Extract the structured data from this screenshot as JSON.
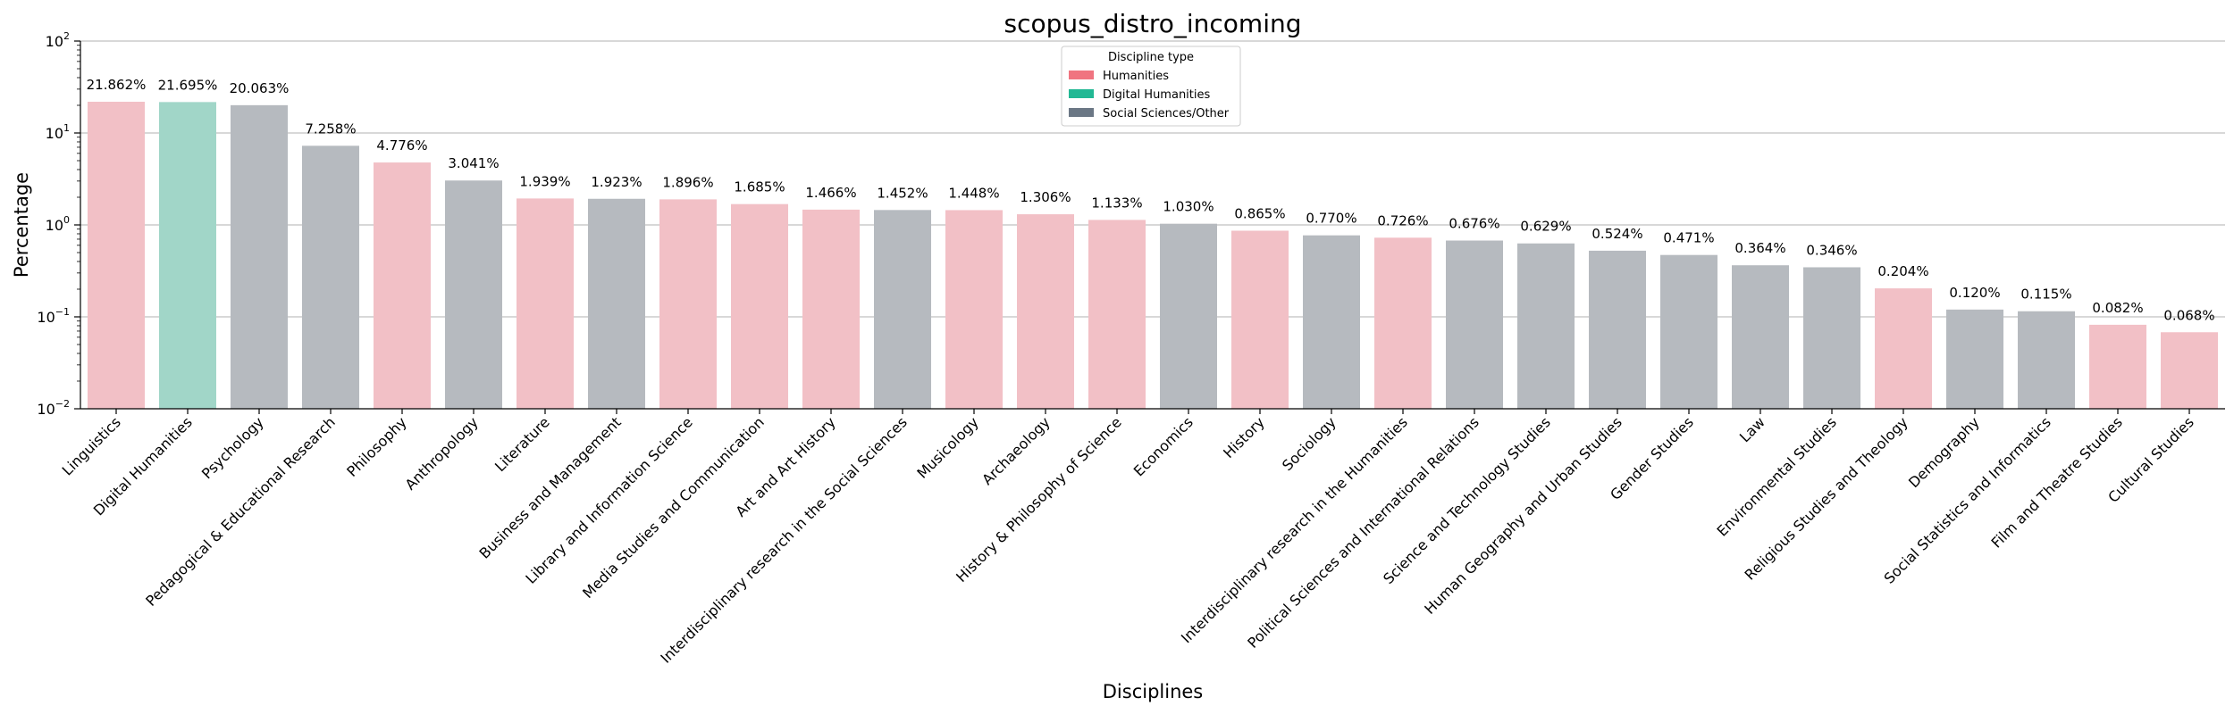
{
  "chart_data": {
    "type": "bar",
    "title": "scopus_distro_incoming",
    "xlabel": "Disciplines",
    "ylabel": "Percentage",
    "yscale": "log",
    "ylim": [
      0.01,
      100
    ],
    "yticks": [
      {
        "value": 100,
        "base": "10",
        "exp": "2"
      },
      {
        "value": 10,
        "base": "10",
        "exp": "1"
      },
      {
        "value": 1,
        "base": "10",
        "exp": "0"
      },
      {
        "value": 0.1,
        "base": "10",
        "exp": "−1"
      },
      {
        "value": 0.01,
        "base": "10",
        "exp": "−2"
      }
    ],
    "grid": "horizontal major",
    "legend": {
      "title": "Discipline type",
      "placement": "top-center",
      "entries": [
        {
          "key": "humanities",
          "label": "Humanities",
          "color": "#f07480"
        },
        {
          "key": "digital",
          "label": "Digital Humanities",
          "color": "#22b894"
        },
        {
          "key": "social",
          "label": "Social Sciences/Other",
          "color": "#6b7785"
        }
      ]
    },
    "bar_colors": {
      "humanities": "#f2c0c6",
      "digital": "#a1d6c8",
      "social": "#b6babf"
    },
    "bars": [
      {
        "category": "Linguistics",
        "value": 21.862,
        "label": "21.862%",
        "type": "humanities"
      },
      {
        "category": "Digital Humanities",
        "value": 21.695,
        "label": "21.695%",
        "type": "digital"
      },
      {
        "category": "Psychology",
        "value": 20.063,
        "label": "20.063%",
        "type": "social"
      },
      {
        "category": "Pedagogical & Educational Research",
        "value": 7.258,
        "label": "7.258%",
        "type": "social"
      },
      {
        "category": "Philosophy",
        "value": 4.776,
        "label": "4.776%",
        "type": "humanities"
      },
      {
        "category": "Anthropology",
        "value": 3.041,
        "label": "3.041%",
        "type": "social"
      },
      {
        "category": "Literature",
        "value": 1.939,
        "label": "1.939%",
        "type": "humanities"
      },
      {
        "category": "Business and Management",
        "value": 1.923,
        "label": "1.923%",
        "type": "social"
      },
      {
        "category": "Library and Information Science",
        "value": 1.896,
        "label": "1.896%",
        "type": "humanities"
      },
      {
        "category": "Media Studies and Communication",
        "value": 1.685,
        "label": "1.685%",
        "type": "humanities"
      },
      {
        "category": "Art and Art History",
        "value": 1.466,
        "label": "1.466%",
        "type": "humanities"
      },
      {
        "category": "Interdisciplinary research in the Social Sciences",
        "value": 1.452,
        "label": "1.452%",
        "type": "social"
      },
      {
        "category": "Musicology",
        "value": 1.448,
        "label": "1.448%",
        "type": "humanities"
      },
      {
        "category": "Archaeology",
        "value": 1.306,
        "label": "1.306%",
        "type": "humanities"
      },
      {
        "category": "History & Philosophy of Science",
        "value": 1.133,
        "label": "1.133%",
        "type": "humanities"
      },
      {
        "category": "Economics",
        "value": 1.03,
        "label": "1.030%",
        "type": "social"
      },
      {
        "category": "History",
        "value": 0.865,
        "label": "0.865%",
        "type": "humanities"
      },
      {
        "category": "Sociology",
        "value": 0.77,
        "label": "0.770%",
        "type": "social"
      },
      {
        "category": "Interdisciplinary research in the Humanities",
        "value": 0.726,
        "label": "0.726%",
        "type": "humanities"
      },
      {
        "category": "Political Sciences and International Relations",
        "value": 0.676,
        "label": "0.676%",
        "type": "social"
      },
      {
        "category": "Science and Technology Studies",
        "value": 0.629,
        "label": "0.629%",
        "type": "social"
      },
      {
        "category": "Human Geography and Urban Studies",
        "value": 0.524,
        "label": "0.524%",
        "type": "social"
      },
      {
        "category": "Gender Studies",
        "value": 0.471,
        "label": "0.471%",
        "type": "social"
      },
      {
        "category": "Law",
        "value": 0.364,
        "label": "0.364%",
        "type": "social"
      },
      {
        "category": "Environmental Studies",
        "value": 0.346,
        "label": "0.346%",
        "type": "social"
      },
      {
        "category": "Religious Studies and Theology",
        "value": 0.204,
        "label": "0.204%",
        "type": "humanities"
      },
      {
        "category": "Demography",
        "value": 0.12,
        "label": "0.120%",
        "type": "social"
      },
      {
        "category": "Social Statistics and Informatics",
        "value": 0.115,
        "label": "0.115%",
        "type": "social"
      },
      {
        "category": "Film and Theatre Studies",
        "value": 0.082,
        "label": "0.082%",
        "type": "humanities"
      },
      {
        "category": "Cultural Studies",
        "value": 0.068,
        "label": "0.068%",
        "type": "humanities"
      }
    ]
  }
}
